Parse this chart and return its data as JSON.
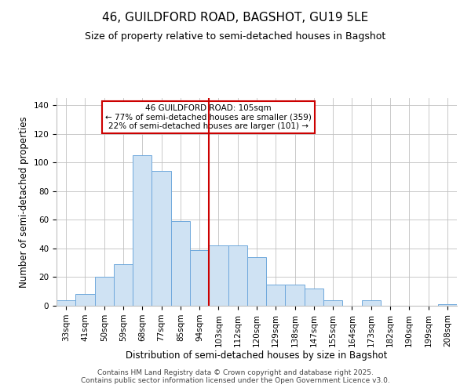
{
  "title": "46, GUILDFORD ROAD, BAGSHOT, GU19 5LE",
  "subtitle": "Size of property relative to semi-detached houses in Bagshot",
  "xlabel": "Distribution of semi-detached houses by size in Bagshot",
  "ylabel": "Number of semi-detached properties",
  "bar_labels": [
    "33sqm",
    "41sqm",
    "50sqm",
    "59sqm",
    "68sqm",
    "77sqm",
    "85sqm",
    "94sqm",
    "103sqm",
    "112sqm",
    "120sqm",
    "129sqm",
    "138sqm",
    "147sqm",
    "155sqm",
    "164sqm",
    "173sqm",
    "182sqm",
    "190sqm",
    "199sqm",
    "208sqm"
  ],
  "bar_values": [
    4,
    8,
    20,
    29,
    105,
    94,
    59,
    39,
    42,
    42,
    34,
    15,
    15,
    12,
    4,
    0,
    4,
    0,
    0,
    0,
    1
  ],
  "bar_color": "#cfe2f3",
  "bar_edge_color": "#6fa8dc",
  "vline_x_index": 8,
  "vline_color": "#cc0000",
  "annotation_title": "46 GUILDFORD ROAD: 105sqm",
  "annotation_line1": "← 77% of semi-detached houses are smaller (359)",
  "annotation_line2": "22% of semi-detached houses are larger (101) →",
  "annotation_box_color": "#cc0000",
  "annotation_fill": "#ffffff",
  "ylim": [
    0,
    145
  ],
  "yticks": [
    0,
    20,
    40,
    60,
    80,
    100,
    120,
    140
  ],
  "footer1": "Contains HM Land Registry data © Crown copyright and database right 2025.",
  "footer2": "Contains public sector information licensed under the Open Government Licence v3.0.",
  "bg_color": "#ffffff",
  "grid_color": "#c0c0c0",
  "title_fontsize": 11,
  "subtitle_fontsize": 9,
  "axis_label_fontsize": 8.5,
  "tick_fontsize": 7.5,
  "footer_fontsize": 6.5
}
